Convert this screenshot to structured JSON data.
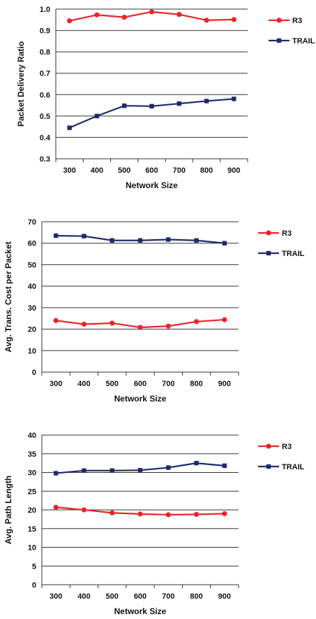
{
  "chart_data": [
    {
      "type": "line",
      "xlabel": "Network Size",
      "ylabel": "Packet Delivery Ratio",
      "ylim": [
        0.3,
        1
      ],
      "ystep": 0.1,
      "ydecimals": 1,
      "grid": true,
      "legend_position": "right",
      "x": [
        300,
        400,
        500,
        600,
        700,
        800,
        900
      ],
      "series": [
        {
          "name": "R3",
          "color": "#e8242a",
          "marker": "circle",
          "values": [
            0.945,
            0.973,
            0.962,
            0.987,
            0.975,
            0.948,
            0.951
          ]
        },
        {
          "name": "TRAIL",
          "color": "#1f2a6b",
          "marker": "square",
          "values": [
            0.445,
            0.5,
            0.548,
            0.546,
            0.558,
            0.57,
            0.58
          ]
        }
      ]
    },
    {
      "type": "line",
      "xlabel": "Network Size",
      "ylabel": "Avg. Trans. Cost per Packet",
      "ylim": [
        0,
        70
      ],
      "ystep": 10,
      "ydecimals": 0,
      "grid": true,
      "legend_position": "right",
      "x": [
        300,
        400,
        500,
        600,
        700,
        800,
        900
      ],
      "series": [
        {
          "name": "R3",
          "color": "#e8242a",
          "marker": "circle",
          "values": [
            24.0,
            22.3,
            22.8,
            20.8,
            21.4,
            23.5,
            24.4
          ]
        },
        {
          "name": "TRAIL",
          "color": "#1f2a6b",
          "marker": "square",
          "values": [
            63.5,
            63.3,
            61.3,
            61.3,
            61.7,
            61.3,
            60.0
          ]
        }
      ]
    },
    {
      "type": "line",
      "xlabel": "Network Size",
      "ylabel": "Avg. Path Length",
      "ylim": [
        0,
        40
      ],
      "ystep": 5,
      "ydecimals": 0,
      "grid": true,
      "legend_position": "right",
      "x": [
        300,
        400,
        500,
        600,
        700,
        800,
        900
      ],
      "series": [
        {
          "name": "R3",
          "color": "#e8242a",
          "marker": "circle",
          "values": [
            20.7,
            20.0,
            19.2,
            18.9,
            18.7,
            18.8,
            19.0
          ]
        },
        {
          "name": "TRAIL",
          "color": "#1f2a6b",
          "marker": "square",
          "values": [
            29.8,
            30.5,
            30.5,
            30.6,
            31.3,
            32.5,
            31.8
          ]
        }
      ]
    }
  ]
}
